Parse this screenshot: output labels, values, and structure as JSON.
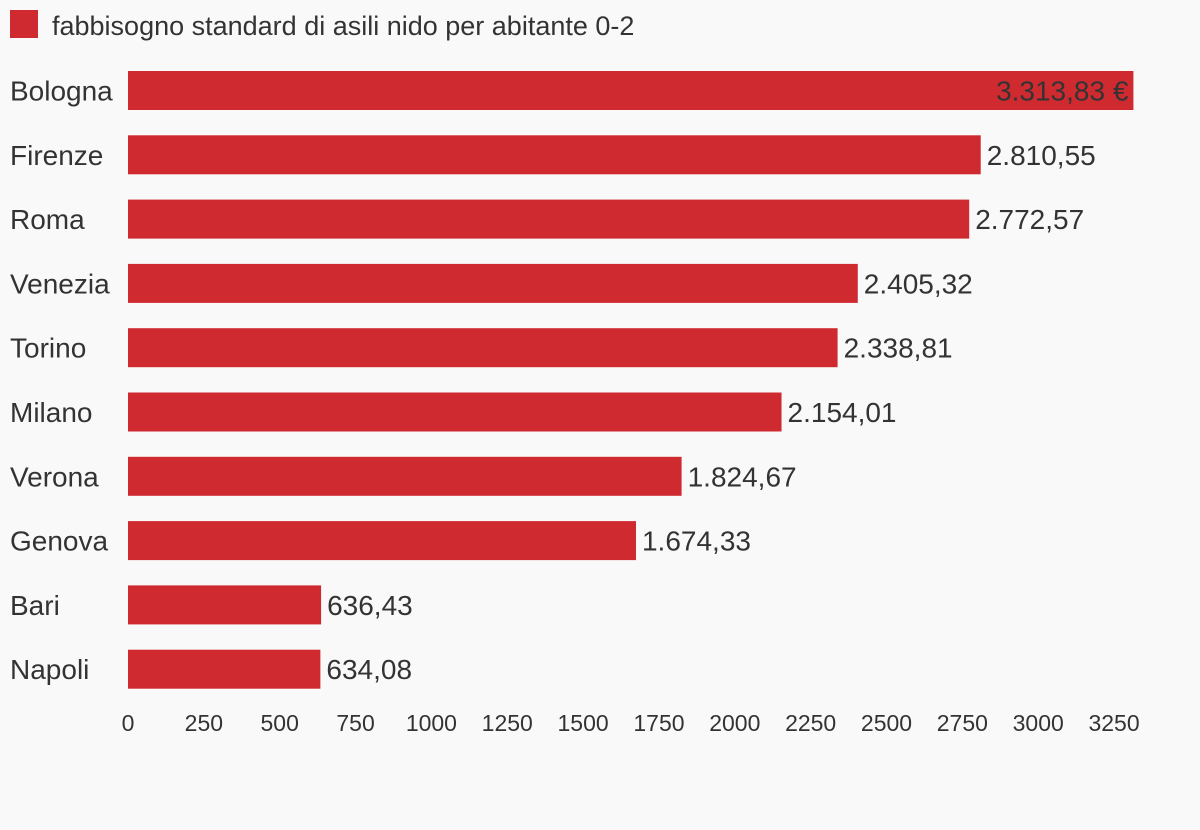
{
  "legend": {
    "label": "fabbisogno standard di asili nido per abitante 0-2",
    "color": "#d02a31"
  },
  "chart_data": {
    "type": "bar",
    "orientation": "horizontal",
    "categories": [
      "Bologna",
      "Firenze",
      "Roma",
      "Venezia",
      "Torino",
      "Milano",
      "Verona",
      "Genova",
      "Bari",
      "Napoli"
    ],
    "values": [
      3313.83,
      2810.55,
      2772.57,
      2405.32,
      2338.81,
      2154.01,
      1824.67,
      1674.33,
      636.43,
      634.08
    ],
    "value_labels": [
      "3.313,83 €",
      "2.810,55",
      "2.772,57",
      "2.405,32",
      "2.338,81",
      "2.154,01",
      "1.824,67",
      "1.674,33",
      "636,43",
      "634,08"
    ],
    "series": [
      {
        "name": "fabbisogno standard di asili nido per abitante 0-2",
        "color": "#d02a31"
      }
    ],
    "xticks": [
      0,
      250,
      500,
      750,
      1000,
      1250,
      1500,
      1750,
      2000,
      2250,
      2500,
      2750,
      3000,
      3250
    ],
    "xlim": [
      0,
      3250
    ],
    "grid": false,
    "legend_position": "top-left"
  }
}
